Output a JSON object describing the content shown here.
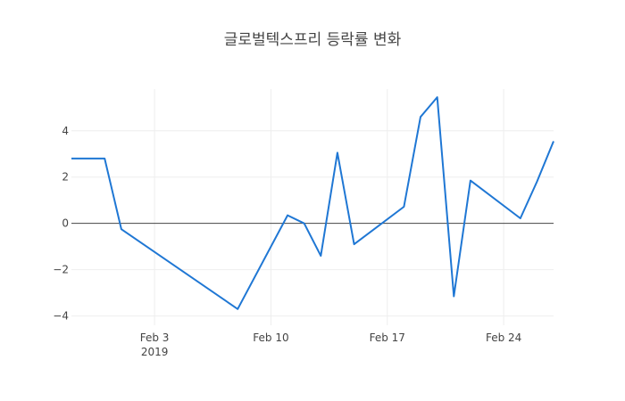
{
  "chart_data": {
    "type": "line",
    "title": "글로벌텍스프리 등락률 변화",
    "xlabel": "",
    "ylabel": "",
    "x_range": [
      "2019-01-29",
      "2019-02-27"
    ],
    "ylim": [
      -4.4,
      5.8
    ],
    "grid": true,
    "x_ticks": [
      {
        "date": "2019-02-03",
        "label": "Feb 3",
        "sublabel": "2019"
      },
      {
        "date": "2019-02-10",
        "label": "Feb 10",
        "sublabel": ""
      },
      {
        "date": "2019-02-17",
        "label": "Feb 17",
        "sublabel": ""
      },
      {
        "date": "2019-02-24",
        "label": "Feb 24",
        "sublabel": ""
      }
    ],
    "y_ticks": [
      {
        "value": 4,
        "label": "4"
      },
      {
        "value": 2,
        "label": "2"
      },
      {
        "value": 0,
        "label": "0"
      },
      {
        "value": -2,
        "label": "−2"
      },
      {
        "value": -4,
        "label": "−4"
      }
    ],
    "series": [
      {
        "name": "",
        "color": "#1f77d4",
        "x": [
          "2019-01-29",
          "2019-01-30",
          "2019-01-31",
          "2019-02-01",
          "2019-02-08",
          "2019-02-11",
          "2019-02-12",
          "2019-02-13",
          "2019-02-14",
          "2019-02-15",
          "2019-02-18",
          "2019-02-19",
          "2019-02-20",
          "2019-02-21",
          "2019-02-22",
          "2019-02-25",
          "2019-02-26",
          "2019-02-27"
        ],
        "y": [
          2.8,
          2.8,
          2.8,
          -0.25,
          -3.7,
          0.35,
          0.0,
          -1.4,
          3.05,
          -0.9,
          0.72,
          4.6,
          5.45,
          -3.15,
          1.85,
          0.22,
          1.8,
          3.55
        ]
      }
    ]
  }
}
